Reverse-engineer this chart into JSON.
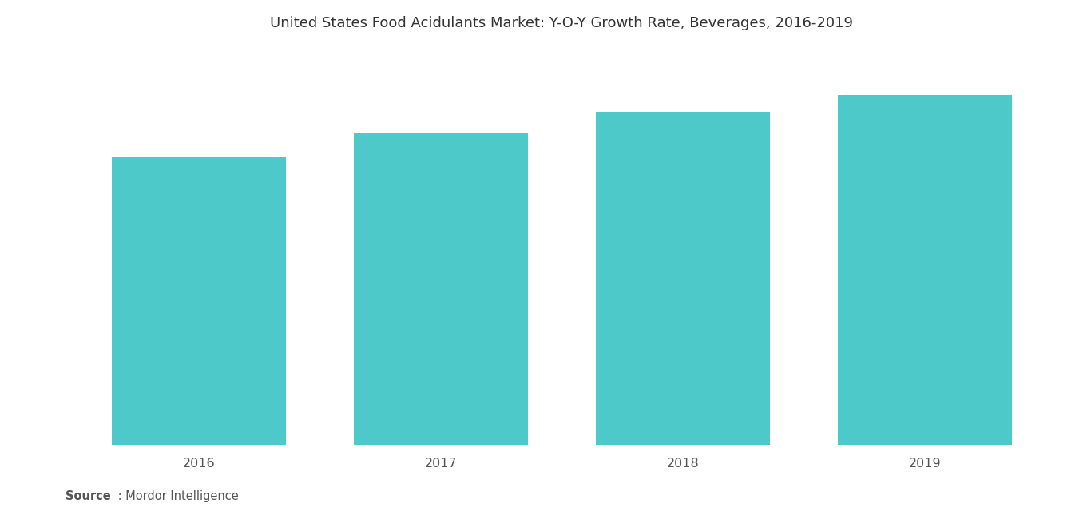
{
  "title": "United States Food Acidulants Market: Y-O-Y Growth Rate, Beverages, 2016-2019",
  "categories": [
    "2016",
    "2017",
    "2018",
    "2019"
  ],
  "values": [
    4.2,
    4.55,
    4.85,
    5.1
  ],
  "bar_color": "#4ec9c9",
  "bar_width": 0.72,
  "ylim": [
    0,
    5.8
  ],
  "xlim_left": -0.55,
  "xlim_right": 3.55,
  "background_color": "#ffffff",
  "title_fontsize": 13,
  "tick_fontsize": 11.5,
  "tick_color": "#555555",
  "source_bold": "Source",
  "source_rest": " : Mordor Intelligence",
  "source_fontsize": 10.5,
  "source_color": "#555555",
  "title_color": "#333333"
}
